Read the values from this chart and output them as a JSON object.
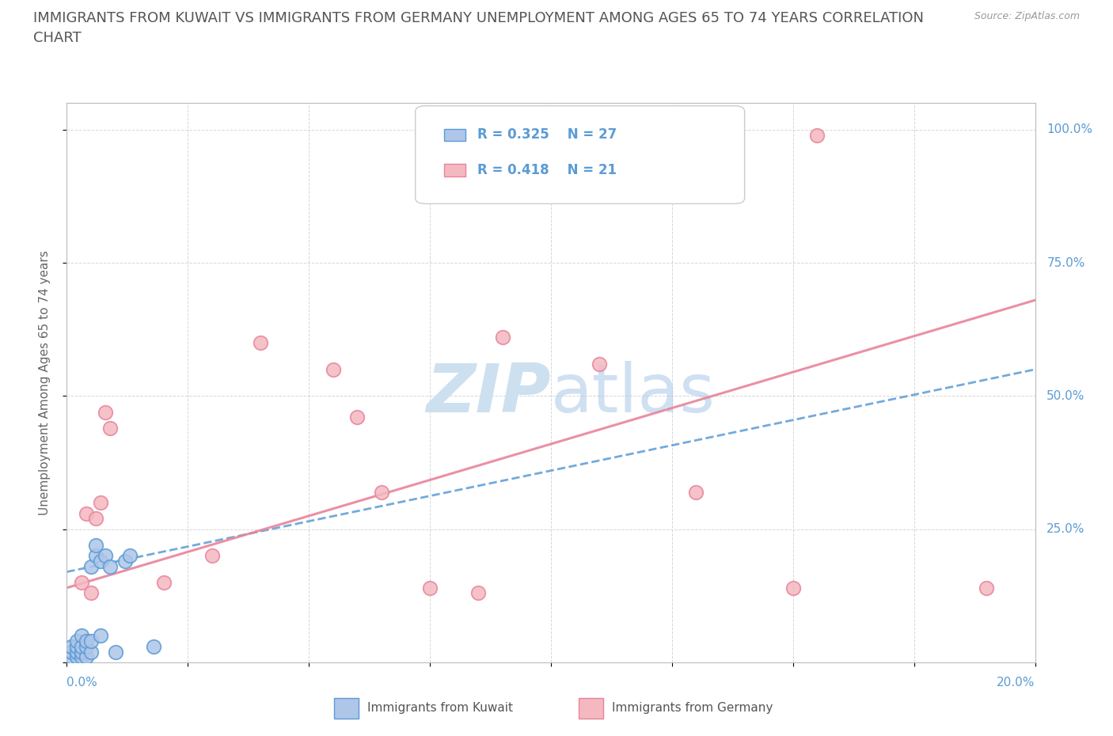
{
  "title_line1": "IMMIGRANTS FROM KUWAIT VS IMMIGRANTS FROM GERMANY UNEMPLOYMENT AMONG AGES 65 TO 74 YEARS CORRELATION",
  "title_line2": "CHART",
  "source": "Source: ZipAtlas.com",
  "ylabel_label": "Unemployment Among Ages 65 to 74 years",
  "xlim": [
    0.0,
    0.2
  ],
  "ylim": [
    0.0,
    1.05
  ],
  "kuwait_R": 0.325,
  "kuwait_N": 27,
  "germany_R": 0.418,
  "germany_N": 21,
  "kuwait_color": "#aec6e8",
  "kuwait_edge": "#5b9bd5",
  "germany_color": "#f4b8c1",
  "germany_edge": "#e8849a",
  "trendline_kuwait_color": "#5b9bd5",
  "trendline_germany_color": "#e8849a",
  "kuwait_x": [
    0.001,
    0.001,
    0.001,
    0.002,
    0.002,
    0.002,
    0.002,
    0.003,
    0.003,
    0.003,
    0.003,
    0.004,
    0.004,
    0.004,
    0.005,
    0.005,
    0.005,
    0.006,
    0.006,
    0.007,
    0.007,
    0.008,
    0.009,
    0.01,
    0.012,
    0.013,
    0.018
  ],
  "kuwait_y": [
    0.01,
    0.02,
    0.03,
    0.01,
    0.02,
    0.03,
    0.04,
    0.01,
    0.02,
    0.03,
    0.05,
    0.01,
    0.03,
    0.04,
    0.02,
    0.04,
    0.18,
    0.2,
    0.22,
    0.05,
    0.19,
    0.2,
    0.18,
    0.02,
    0.19,
    0.2,
    0.03
  ],
  "germany_x": [
    0.003,
    0.004,
    0.005,
    0.006,
    0.007,
    0.008,
    0.009,
    0.02,
    0.03,
    0.04,
    0.055,
    0.06,
    0.065,
    0.075,
    0.085,
    0.09,
    0.11,
    0.13,
    0.15,
    0.155,
    0.19
  ],
  "germany_y": [
    0.15,
    0.28,
    0.13,
    0.27,
    0.3,
    0.47,
    0.44,
    0.15,
    0.2,
    0.6,
    0.55,
    0.46,
    0.32,
    0.14,
    0.13,
    0.61,
    0.56,
    0.32,
    0.14,
    0.99,
    0.14
  ],
  "background_color": "#ffffff",
  "grid_color": "#cccccc",
  "title_color": "#555555",
  "title_fontsize": 13,
  "axis_label_color": "#5b9bd5",
  "watermark_color": "#cce0f0",
  "legend_kuwait_label": "Immigrants from Kuwait",
  "legend_germany_label": "Immigrants from Germany"
}
